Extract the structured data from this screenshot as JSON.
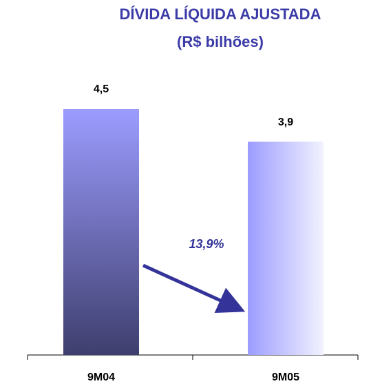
{
  "chart_data": {
    "type": "bar",
    "title": "DÍVIDA LÍQUIDA AJUSTADA",
    "subtitle": "(R$ bilhões)",
    "categories": [
      "9M04",
      "9M05"
    ],
    "values": [
      4.5,
      3.9
    ],
    "value_labels": [
      "4,5",
      "3,9"
    ],
    "annotation": "13,9%"
  }
}
